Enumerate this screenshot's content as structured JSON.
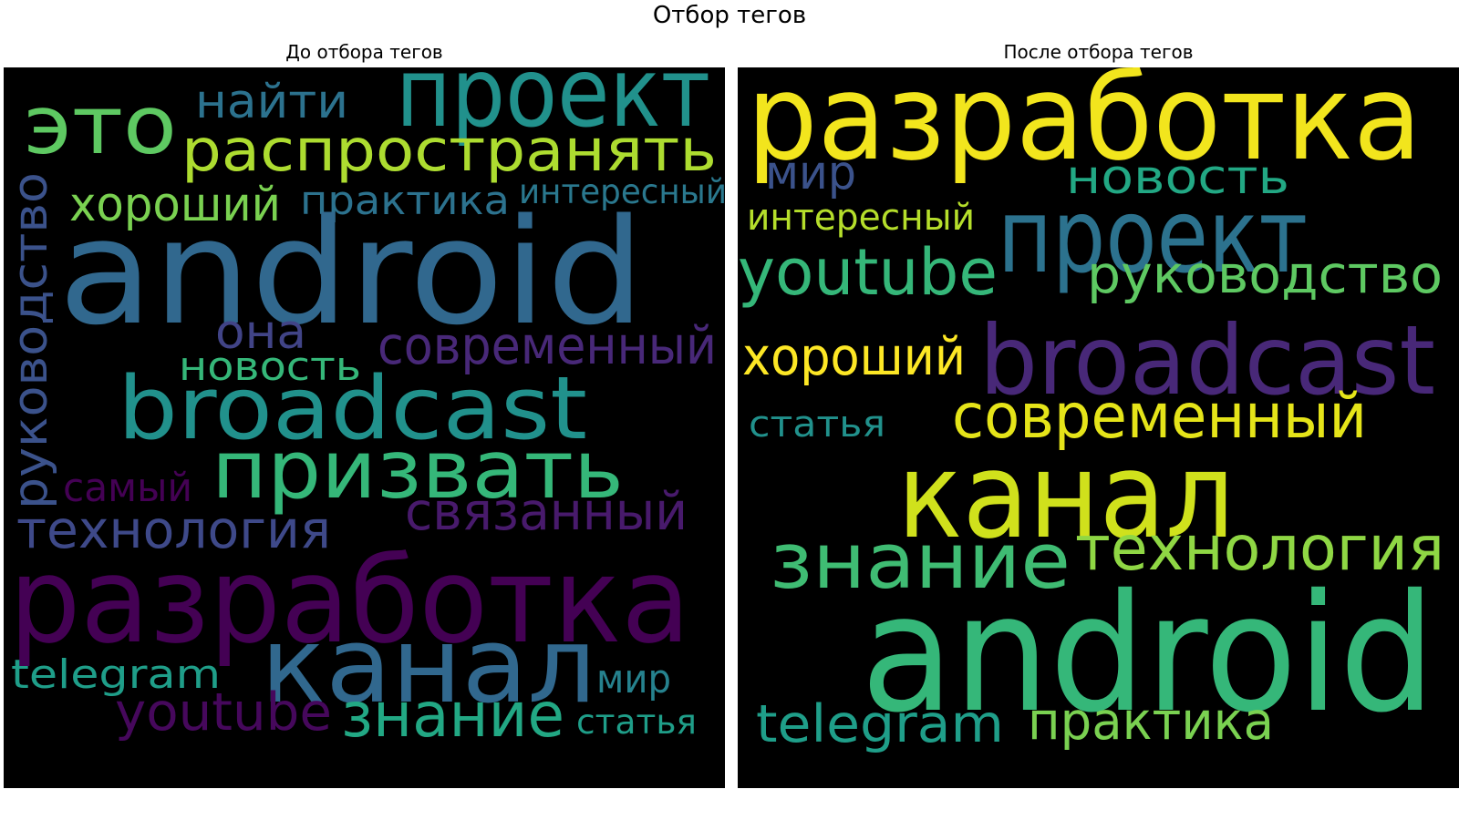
{
  "title": "Отбор тегов",
  "left": {
    "title": "До отбора тегов",
    "words": [
      {
        "text": "это",
        "color": "#5ec962"
      },
      {
        "text": "проект",
        "color": "#21918c"
      },
      {
        "text": "найти",
        "color": "#2c728e"
      },
      {
        "text": "распространять",
        "color": "#addc30"
      },
      {
        "text": "хороший",
        "color": "#7ad151"
      },
      {
        "text": "практика",
        "color": "#2c728e"
      },
      {
        "text": "интересный",
        "color": "#2a788e"
      },
      {
        "text": "руководство",
        "color": "#3b528b"
      },
      {
        "text": "android",
        "color": "#31688e"
      },
      {
        "text": "она",
        "color": "#414487"
      },
      {
        "text": "современный",
        "color": "#482878"
      },
      {
        "text": "новость",
        "color": "#35b779"
      },
      {
        "text": "broadcast",
        "color": "#21918c"
      },
      {
        "text": "призвать",
        "color": "#35b779"
      },
      {
        "text": "самый",
        "color": "#440154"
      },
      {
        "text": "связанный",
        "color": "#481a6c"
      },
      {
        "text": "технология",
        "color": "#3e4989"
      },
      {
        "text": "разработка",
        "color": "#440154"
      },
      {
        "text": "канал",
        "color": "#31688e"
      },
      {
        "text": "telegram",
        "color": "#1f9e89"
      },
      {
        "text": "мир",
        "color": "#26828e"
      },
      {
        "text": "youtube",
        "color": "#46085c"
      },
      {
        "text": "знание",
        "color": "#22a884"
      },
      {
        "text": "статья",
        "color": "#1f9e89"
      }
    ]
  },
  "right": {
    "title": "После отбора тегов",
    "words": [
      {
        "text": "разработка",
        "color": "#f2e51d"
      },
      {
        "text": "мир",
        "color": "#3b528b"
      },
      {
        "text": "новость",
        "color": "#22a884"
      },
      {
        "text": "интересный",
        "color": "#b5de2b"
      },
      {
        "text": "проект",
        "color": "#2c728e"
      },
      {
        "text": "youtube",
        "color": "#35b779"
      },
      {
        "text": "руководство",
        "color": "#5ec962"
      },
      {
        "text": "хороший",
        "color": "#fde725"
      },
      {
        "text": "broadcast",
        "color": "#482878"
      },
      {
        "text": "статья",
        "color": "#21918c"
      },
      {
        "text": "современный",
        "color": "#e5e419"
      },
      {
        "text": "канал",
        "color": "#d0e11c"
      },
      {
        "text": "знание",
        "color": "#3fbc73"
      },
      {
        "text": "технология",
        "color": "#8fd744"
      },
      {
        "text": "android",
        "color": "#35b779"
      },
      {
        "text": "telegram",
        "color": "#1f9e89"
      },
      {
        "text": "практика",
        "color": "#7ad151"
      }
    ]
  }
}
